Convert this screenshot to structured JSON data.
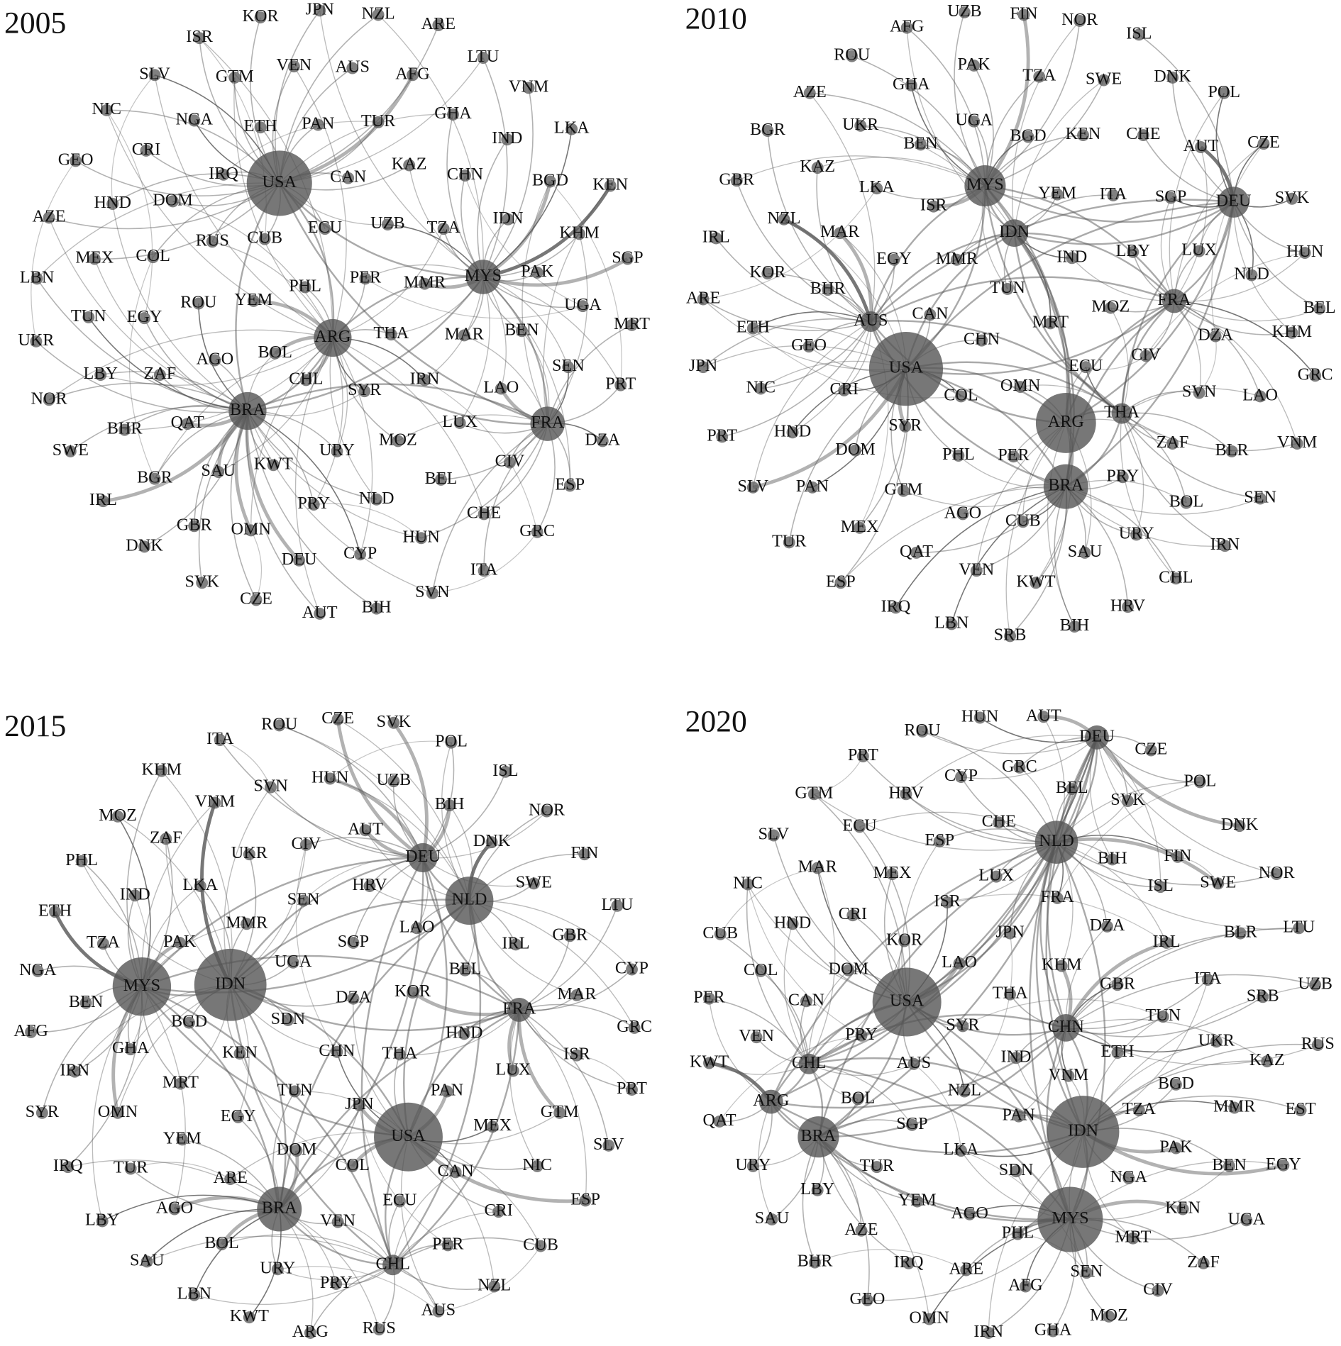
{
  "panels": [
    {
      "title": "2005",
      "nodes": [
        "USA",
        "CAN",
        "KOR",
        "JPN",
        "NZL",
        "ARE",
        "ISR",
        "VEN",
        "AUS",
        "AFG",
        "LTU",
        "SLV",
        "GTM",
        "VNM",
        "NIC",
        "NGA",
        "ETH",
        "PAN",
        "TUR",
        "GHA",
        "LKA",
        "IND",
        "CRI",
        "GEO",
        "IRQ",
        "KAZ",
        "CHN",
        "BGD",
        "KEN",
        "HND",
        "DOM",
        "AZE",
        "ECU",
        "UZB",
        "TZA",
        "IDN",
        "KHM",
        "RUS",
        "CUB",
        "MEX",
        "COL",
        "SGP",
        "LBN",
        "MYS",
        "PAK",
        "PHL",
        "PER",
        "MMR",
        "UGA",
        "YEM",
        "ROU",
        "TUN",
        "EGY",
        "ARG",
        "THA",
        "MAR",
        "BEN",
        "MRT",
        "UKR",
        "AGO",
        "BOL",
        "IRN",
        "LBY",
        "ZAF",
        "CHL",
        "SYR",
        "LAO",
        "SEN",
        "PRT",
        "NOR",
        "BRA",
        "QAT",
        "LUX",
        "FRA",
        "MOZ",
        "DZA",
        "BHR",
        "SWE",
        "KWT",
        "URY",
        "CIV",
        "SAU",
        "BGR",
        "BEL",
        "ESP",
        "IRL",
        "PRY",
        "NLD",
        "GBR",
        "OMN",
        "CHE",
        "GRC",
        "HUN",
        "DNK",
        "CYP",
        "DEU",
        "ITA",
        "SVK",
        "SVN",
        "CZE",
        "AUT",
        "BIH"
      ]
    },
    {
      "title": "2010",
      "nodes": [
        "UZB",
        "FIN",
        "NOR",
        "AFG",
        "ISL",
        "ROU",
        "PAK",
        "TZA",
        "SWE",
        "DNK",
        "GHA",
        "AZE",
        "POL",
        "BGR",
        "UKR",
        "UGA",
        "BEN",
        "BGD",
        "KEN",
        "CHE",
        "AUT",
        "CZE",
        "KAZ",
        "MYS",
        "GBR",
        "YEM",
        "ITA",
        "SGP",
        "DEU",
        "SVK",
        "LKA",
        "ISR",
        "NZL",
        "IDN",
        "IRL",
        "MAR",
        "HUN",
        "EGY",
        "MMR",
        "IND",
        "LBY",
        "LUX",
        "NLD",
        "KOR",
        "BHR",
        "TUN",
        "FRA",
        "BEL",
        "ARE",
        "AUS",
        "CAN",
        "MOZ",
        "MRT",
        "KHM",
        "DZA",
        "ETH",
        "GEO",
        "CHN",
        "USA",
        "CIV",
        "ECU",
        "GRC",
        "JPN",
        "NIC",
        "CRI",
        "COL",
        "OMN",
        "THA",
        "SVN",
        "LAO",
        "ARG",
        "PRT",
        "HND",
        "SYR",
        "VNM",
        "DOM",
        "PHL",
        "PER",
        "ZAF",
        "BLR",
        "SLV",
        "PAN",
        "GTM",
        "BRA",
        "PRY",
        "SEN",
        "AGO",
        "CUB",
        "BOL",
        "MEX",
        "TUR",
        "QAT",
        "URY",
        "IRN",
        "SAU",
        "VEN",
        "CHL",
        "ESP",
        "KWT",
        "HRV",
        "IRQ",
        "LBN",
        "BIH",
        "SRB"
      ]
    },
    {
      "title": "2015",
      "nodes": [
        "ROU",
        "CZE",
        "SVK",
        "POL",
        "ITA",
        "ISL",
        "KHM",
        "SVN",
        "HUN",
        "UZB",
        "VNM",
        "BIH",
        "NOR",
        "MOZ",
        "ZAF",
        "AUT",
        "DNK",
        "CIV",
        "UKR",
        "DEU",
        "FIN",
        "PHL",
        "LKA",
        "HRV",
        "SWE",
        "LTU",
        "NLD",
        "SEN",
        "IND",
        "ETH",
        "MMR",
        "LAO",
        "PAK",
        "TZA",
        "SGP",
        "IRL",
        "GBR",
        "UGA",
        "CYP",
        "NGA",
        "MYS",
        "IDN",
        "BEL",
        "MAR",
        "FRA",
        "BEN",
        "DZA",
        "KOR",
        "SDN",
        "BGD",
        "AFG",
        "GRC",
        "GHA",
        "HND",
        "ISR",
        "KEN",
        "CHN",
        "THA",
        "IRN",
        "MRT",
        "LUX",
        "PRT",
        "TUN",
        "JPN",
        "PAN",
        "SYR",
        "OMN",
        "EGY",
        "GTM",
        "MEX",
        "USA",
        "YEM",
        "SLV",
        "DOM",
        "IRQ",
        "TUR",
        "COL",
        "NIC",
        "CAN",
        "ARE",
        "ECU",
        "ESP",
        "AGO",
        "BRA",
        "VEN",
        "CRI",
        "LBY",
        "BOL",
        "PER",
        "CUB",
        "SAU",
        "CHL",
        "URY",
        "PRY",
        "NZL",
        "LBN",
        "KWT",
        "AUS",
        "ARG",
        "RUS"
      ]
    },
    {
      "title": "2020",
      "nodes": [
        "HUN",
        "AUT",
        "ROU",
        "DEU",
        "CZE",
        "PRT",
        "GRC",
        "CYP",
        "POL",
        "GTM",
        "HRV",
        "BEL",
        "SVK",
        "ECU",
        "CHE",
        "DNK",
        "SLV",
        "NLD",
        "ESP",
        "FIN",
        "BIH",
        "NOR",
        "MAR",
        "LUX",
        "MEX",
        "ISL",
        "SWE",
        "NIC",
        "FRA",
        "CRI",
        "LTU",
        "HND",
        "ISR",
        "DZA",
        "JPN",
        "BLR",
        "CUB",
        "IRL",
        "KOR",
        "KHM",
        "ITA",
        "LAO",
        "DOM",
        "SRB",
        "UZB",
        "COL",
        "GBR",
        "THA",
        "USA",
        "CAN",
        "PER",
        "TUN",
        "RUS",
        "CHN",
        "SYR",
        "UKR",
        "KAZ",
        "VEN",
        "PRY",
        "IND",
        "ETH",
        "KWT",
        "CHL",
        "AUS",
        "VNM",
        "BGD",
        "ARG",
        "BOL",
        "NZL",
        "IDN",
        "TZA",
        "MMR",
        "EST",
        "QAT",
        "SGP",
        "PAN",
        "BRA",
        "PAK",
        "URY",
        "TUR",
        "LKA",
        "SDN",
        "NGA",
        "BEN",
        "EGY",
        "LBY",
        "YEM",
        "AGO",
        "MYS",
        "KEN",
        "UGA",
        "SAU",
        "PHL",
        "MRT",
        "AZE",
        "ZAF",
        "BHR",
        "IRQ",
        "ARE",
        "SEN",
        "AFG",
        "CIV",
        "GEO",
        "OMN",
        "MOZ",
        "IRN",
        "GHA"
      ]
    }
  ]
}
